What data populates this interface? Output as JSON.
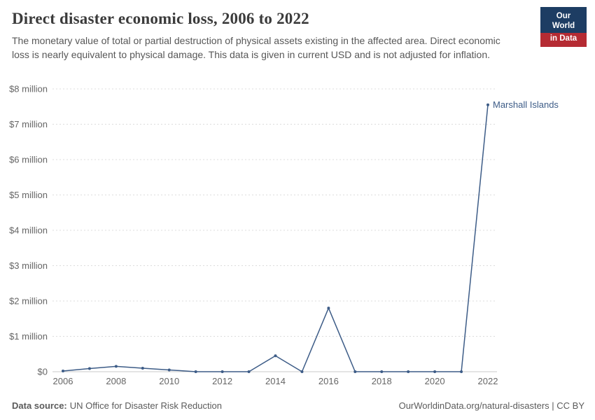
{
  "header": {
    "title": "Direct disaster economic loss, 2006 to 2022",
    "subtitle": "The monetary value of total or partial destruction of physical assets existing in the affected area. Direct economic loss is nearly equivalent to physical damage. This data is given in current USD and is not adjusted for inflation.",
    "logo": {
      "line1": "Our World",
      "line2": "in Data"
    }
  },
  "chart_data": {
    "type": "line",
    "title": "Direct disaster economic loss, 2006 to 2022",
    "x": [
      2006,
      2007,
      2008,
      2009,
      2010,
      2011,
      2012,
      2013,
      2014,
      2015,
      2016,
      2017,
      2018,
      2019,
      2020,
      2021,
      2022
    ],
    "series": [
      {
        "name": "Marshall Islands",
        "color": "#3d5c87",
        "values": [
          20000,
          90000,
          150000,
          100000,
          50000,
          0,
          0,
          0,
          450000,
          0,
          1800000,
          0,
          0,
          0,
          0,
          0,
          7550000
        ]
      }
    ],
    "ylim": [
      0,
      8000000
    ],
    "ytick_values": [
      0,
      1000000,
      2000000,
      3000000,
      4000000,
      5000000,
      6000000,
      7000000,
      8000000
    ],
    "ytick_labels": [
      "$0",
      "$1 million",
      "$2 million",
      "$3 million",
      "$4 million",
      "$5 million",
      "$6 million",
      "$7 million",
      "$8 million"
    ],
    "xtick_values": [
      2006,
      2008,
      2010,
      2012,
      2014,
      2016,
      2018,
      2020,
      2022
    ],
    "grid": "dashed horizontal gridlines",
    "legend": "end-of-line entity label",
    "colors": {
      "line": "#3d5c87",
      "gridline": "#dcdcdc",
      "axis": "#c8c8c8",
      "tick_text": "#666666"
    }
  },
  "footer": {
    "source_label": "Data source:",
    "source_text": "UN Office for Disaster Risk Reduction",
    "right_text": "OurWorldinData.org/natural-disasters | CC BY"
  }
}
